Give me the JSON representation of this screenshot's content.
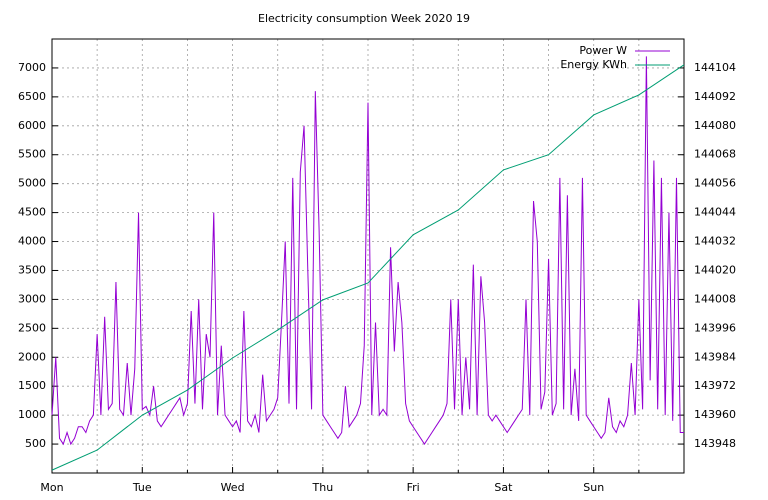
{
  "chart_data": {
    "type": "line",
    "title": "Electricity consumption Week 2020 19",
    "xlim": [
      0,
      168
    ],
    "xticks": [
      {
        "value": 0,
        "label": "Mon"
      },
      {
        "value": 24,
        "label": "Tue"
      },
      {
        "value": 48,
        "label": "Wed"
      },
      {
        "value": 72,
        "label": "Thu"
      },
      {
        "value": 96,
        "label": "Fri"
      },
      {
        "value": 120,
        "label": "Sat"
      },
      {
        "value": 144,
        "label": "Sun"
      }
    ],
    "xminorticks": [
      12,
      36,
      60,
      84,
      108,
      132,
      156
    ],
    "ylim": [
      0,
      7500
    ],
    "yticks": [
      500,
      1000,
      1500,
      2000,
      2500,
      3000,
      3500,
      4000,
      4500,
      5000,
      5500,
      6000,
      6500,
      7000
    ],
    "y2lim": [
      143936,
      144116
    ],
    "y2ticks": [
      143948,
      143960,
      143972,
      143984,
      143996,
      144008,
      144020,
      144032,
      144044,
      144056,
      144068,
      144080,
      144092,
      144104
    ],
    "grid": true,
    "legend": "top-right",
    "series": [
      {
        "name": "Power W",
        "color": "#9400d3",
        "axis": "y",
        "x": [
          0,
          1,
          2,
          3,
          4,
          5,
          6,
          7,
          8,
          9,
          10,
          11,
          12,
          13,
          14,
          15,
          16,
          17,
          18,
          19,
          20,
          21,
          22,
          23,
          24,
          25,
          26,
          27,
          28,
          29,
          30,
          31,
          32,
          33,
          34,
          35,
          36,
          37,
          38,
          39,
          40,
          41,
          42,
          43,
          44,
          45,
          46,
          47,
          48,
          49,
          50,
          51,
          52,
          53,
          54,
          55,
          56,
          57,
          58,
          59,
          60,
          61,
          62,
          63,
          64,
          65,
          66,
          67,
          68,
          69,
          70,
          71,
          72,
          73,
          74,
          75,
          76,
          77,
          78,
          79,
          80,
          81,
          82,
          83,
          84,
          85,
          86,
          87,
          88,
          89,
          90,
          91,
          92,
          93,
          94,
          95,
          96,
          97,
          98,
          99,
          100,
          101,
          102,
          103,
          104,
          105,
          106,
          107,
          108,
          109,
          110,
          111,
          112,
          113,
          114,
          115,
          116,
          117,
          118,
          119,
          120,
          121,
          122,
          123,
          124,
          125,
          126,
          127,
          128,
          129,
          130,
          131,
          132,
          133,
          134,
          135,
          136,
          137,
          138,
          139,
          140,
          141,
          142,
          143,
          144,
          145,
          146,
          147,
          148,
          149,
          150,
          151,
          152,
          153,
          154,
          155,
          156,
          157,
          158,
          159,
          160,
          161,
          162,
          163,
          164,
          165,
          166,
          167,
          168
        ],
        "values": [
          1000,
          2000,
          600,
          500,
          700,
          500,
          600,
          800,
          800,
          700,
          900,
          1000,
          2400,
          1000,
          2700,
          1100,
          1200,
          3300,
          1100,
          1000,
          1900,
          1000,
          1800,
          4500,
          1100,
          1150,
          1000,
          1500,
          900,
          800,
          900,
          1000,
          1100,
          1200,
          1300,
          1000,
          1200,
          2800,
          1200,
          3000,
          1100,
          2400,
          2000,
          4500,
          1000,
          2200,
          1000,
          900,
          800,
          900,
          700,
          2800,
          900,
          800,
          1000,
          700,
          1700,
          900,
          1000,
          1100,
          1300,
          2600,
          4000,
          1200,
          5100,
          1100,
          5200,
          6000,
          3500,
          1100,
          6600,
          4200,
          1000,
          900,
          800,
          700,
          600,
          700,
          1500,
          800,
          900,
          1000,
          1200,
          2200,
          6400,
          1000,
          2600,
          1000,
          1100,
          1000,
          3900,
          2100,
          3300,
          2600,
          1200,
          900,
          800,
          700,
          600,
          500,
          600,
          700,
          800,
          900,
          1000,
          1200,
          3000,
          1100,
          3000,
          1000,
          2000,
          1100,
          3600,
          1000,
          3400,
          2600,
          1000,
          900,
          1000,
          900,
          800,
          700,
          800,
          900,
          1000,
          1100,
          3000,
          1000,
          4700,
          4000,
          1100,
          1400,
          3700,
          1000,
          1200,
          5100,
          1100,
          4800,
          1000,
          1800,
          900,
          5100,
          1000,
          900,
          800,
          700,
          600,
          700,
          1300,
          800,
          700,
          900,
          800,
          1000,
          1900,
          1000,
          3000,
          1100,
          7200,
          1600,
          5400,
          1100,
          5100,
          1000,
          4500,
          900,
          5100,
          700,
          700
        ]
      },
      {
        "name": "Energy KWh",
        "color": "#009e73",
        "axis": "y2",
        "x": [
          0,
          12,
          24,
          36,
          48,
          60,
          72,
          84,
          96,
          108,
          120,
          132,
          144,
          156,
          168
        ],
        "values": [
          143937.2,
          143945.5,
          143960,
          143970.4,
          143983.7,
          143995.3,
          144007.8,
          144014.8,
          144034.8,
          144045.1,
          144061.7,
          144068,
          144084.5,
          144092.8,
          144105.3
        ]
      }
    ]
  }
}
